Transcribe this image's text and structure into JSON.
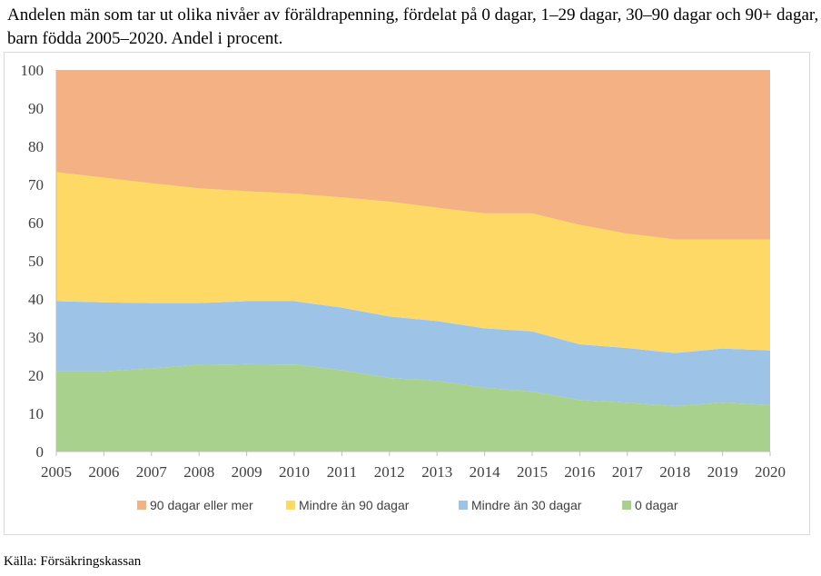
{
  "title": "Andelen män som tar ut olika nivåer av föräldrapenning, fördelat på 0 dagar, 1–29 dagar, 30–90 dagar och 90+ dagar, barn födda 2005–2020. Andel i procent.",
  "source": "Källa: Försäkringskassan",
  "chart_data": {
    "type": "area",
    "stacked": true,
    "title": "Andelen män som tar ut olika nivåer av föräldrapenning, fördelat på 0 dagar, 1–29 dagar, 30–90 dagar och 90+ dagar, barn födda 2005–2020. Andel i procent.",
    "x": [
      "2005",
      "2006",
      "2007",
      "2008",
      "2009",
      "2010",
      "2011",
      "2012",
      "2013",
      "2014",
      "2015",
      "2016",
      "2017",
      "2018",
      "2019",
      "2020"
    ],
    "xlabel": "",
    "ylabel": "",
    "ylim": [
      0,
      100
    ],
    "yticks": [
      "0",
      "10",
      "20",
      "30",
      "40",
      "50",
      "60",
      "70",
      "80",
      "90",
      "100"
    ],
    "grid": false,
    "legend_position": "bottom",
    "series": [
      {
        "name": "0 dagar",
        "color": "#a9d18e",
        "values": [
          21,
          21,
          21.8,
          22.7,
          22.9,
          22.8,
          21.3,
          19.3,
          18.5,
          16.7,
          15.7,
          13.5,
          12.8,
          11.9,
          12.8,
          12.2
        ]
      },
      {
        "name": "Mindre än 30 dagar",
        "color": "#9dc3e6",
        "values": [
          18.4,
          18.1,
          17.1,
          16.2,
          16.5,
          16.6,
          16.4,
          16.1,
          15.7,
          15.6,
          15.8,
          14.6,
          14.3,
          13.9,
          14.2,
          14.3
        ]
      },
      {
        "name": "Mindre än 90 dagar",
        "color": "#ffd966",
        "values": [
          33.8,
          32.7,
          31.4,
          30.1,
          28.8,
          28.2,
          28.9,
          30.1,
          29.7,
          30.1,
          30.9,
          31.3,
          30.0,
          29.8,
          28.6,
          29.1
        ]
      },
      {
        "name": "90 dagar eller mer",
        "color": "#f4b183",
        "values": [
          26.8,
          28.2,
          29.7,
          31.0,
          31.8,
          32.4,
          33.4,
          34.5,
          36.1,
          37.6,
          37.6,
          40.6,
          42.9,
          44.4,
          44.4,
          44.4
        ]
      }
    ],
    "legend_order": [
      "90 dagar eller mer",
      "Mindre än 90 dagar",
      "Mindre än 30 dagar",
      "0 dagar"
    ]
  }
}
